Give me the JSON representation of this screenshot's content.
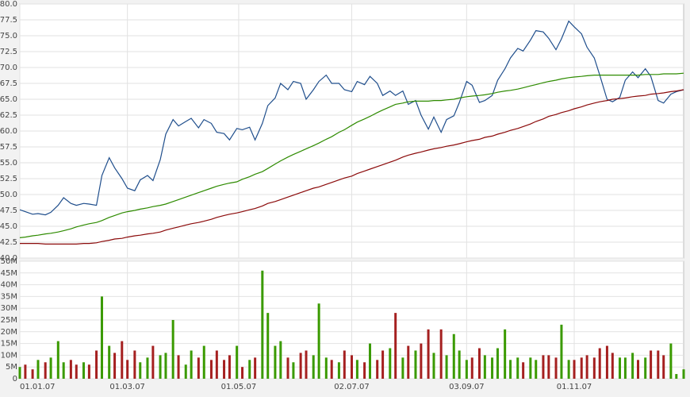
{
  "chart_data": [
    {
      "type": "line",
      "x": [
        "01.01.07",
        "04.01.07",
        "08.01.07",
        "11.01.07",
        "15.01.07",
        "18.01.07",
        "22.01.07",
        "25.01.07",
        "29.01.07",
        "01.02.07",
        "05.02.07",
        "08.02.07",
        "12.02.07",
        "15.02.07",
        "19.02.07",
        "22.02.07",
        "26.02.07",
        "01.03.07",
        "05.03.07",
        "08.03.07",
        "12.03.07",
        "15.03.07",
        "19.03.07",
        "22.03.07",
        "26.03.07",
        "29.03.07",
        "02.04.07",
        "05.04.07",
        "09.04.07",
        "12.04.07",
        "16.04.07",
        "19.04.07",
        "23.04.07",
        "26.04.07",
        "30.04.07",
        "03.05.07",
        "07.05.07",
        "10.05.07",
        "14.05.07",
        "17.05.07",
        "21.05.07",
        "24.05.07",
        "28.05.07",
        "31.05.07",
        "04.06.07",
        "07.06.07",
        "11.06.07",
        "14.06.07",
        "18.06.07",
        "21.06.07",
        "25.06.07",
        "28.06.07",
        "02.07.07",
        "05.07.07",
        "09.07.07",
        "12.07.07",
        "16.07.07",
        "19.07.07",
        "23.07.07",
        "26.07.07",
        "30.07.07",
        "02.08.07",
        "06.08.07",
        "09.08.07",
        "13.08.07",
        "16.08.07",
        "20.08.07",
        "23.08.07",
        "27.08.07",
        "30.08.07",
        "03.09.07",
        "06.09.07",
        "10.09.07",
        "13.09.07",
        "17.09.07",
        "20.09.07",
        "24.09.07",
        "27.09.07",
        "01.10.07",
        "04.10.07",
        "08.10.07",
        "11.10.07",
        "15.10.07",
        "18.10.07",
        "22.10.07",
        "25.10.07",
        "29.10.07",
        "01.11.07",
        "05.11.07",
        "08.11.07",
        "12.11.07",
        "15.11.07",
        "19.11.07",
        "22.11.07",
        "26.11.07",
        "29.11.07",
        "03.12.07",
        "06.12.07",
        "10.12.07",
        "13.12.07",
        "17.12.07",
        "20.12.07",
        "24.12.07",
        "27.12.07",
        "31.12.07"
      ],
      "xlim": [
        "01.01.07",
        "31.12.07"
      ],
      "ylim": [
        40,
        80
      ],
      "yticks": [
        {
          "value": 40,
          "label": "40.0"
        },
        42.5,
        {
          "value": 45,
          "label": "45.0"
        },
        47.5,
        {
          "value": 50,
          "label": "50.0"
        },
        52.5,
        {
          "value": 55,
          "label": "55.0"
        },
        57.5,
        {
          "value": 60,
          "label": "60.0"
        },
        62.5,
        {
          "value": 65,
          "label": "65.0"
        },
        67.5,
        {
          "value": 70,
          "label": "70.0"
        },
        72.5,
        {
          "value": 75,
          "label": "75.0"
        },
        77.5,
        {
          "value": 80,
          "label": "80.0"
        }
      ],
      "grid": true,
      "series": [
        {
          "color": "#1f4e8c",
          "values": [
            47.6,
            47.3,
            46.9,
            47.0,
            46.8,
            47.2,
            48.3,
            49.5,
            48.6,
            48.3,
            48.6,
            48.5,
            48.3,
            53.0,
            55.8,
            54.2,
            52.5,
            51.0,
            50.6,
            52.3,
            53.0,
            52.2,
            55.5,
            59.5,
            61.8,
            60.8,
            61.5,
            62.0,
            60.5,
            61.8,
            61.2,
            59.8,
            59.6,
            58.6,
            60.4,
            60.2,
            60.6,
            58.6,
            61.2,
            64.0,
            65.2,
            67.5,
            66.5,
            67.8,
            67.5,
            65.0,
            66.5,
            67.8,
            68.8,
            67.5,
            67.5,
            66.5,
            66.2,
            67.8,
            67.3,
            68.6,
            67.5,
            65.6,
            66.3,
            65.6,
            66.3,
            64.2,
            64.8,
            62.5,
            60.3,
            62.2,
            59.8,
            61.8,
            62.4,
            64.5,
            67.8,
            67.2,
            64.5,
            64.8,
            65.6,
            68.0,
            69.8,
            71.5,
            73.0,
            72.6,
            74.3,
            75.8,
            75.6,
            74.6,
            72.8,
            74.5,
            77.3,
            76.4,
            75.3,
            73.2,
            71.5,
            68.8,
            65.0,
            64.6,
            65.3,
            68.0,
            69.3,
            68.4,
            69.8,
            68.6,
            64.8,
            64.4,
            65.8,
            66.2,
            66.5
          ]
        },
        {
          "color": "#2e8b00",
          "values": [
            43.2,
            43.3,
            43.5,
            43.6,
            43.8,
            43.9,
            44.1,
            44.3,
            44.6,
            44.9,
            45.2,
            45.4,
            45.6,
            45.9,
            46.4,
            46.7,
            47.1,
            47.3,
            47.5,
            47.7,
            47.9,
            48.1,
            48.3,
            48.5,
            48.9,
            49.2,
            49.6,
            49.9,
            50.3,
            50.6,
            51.0,
            51.3,
            51.6,
            51.8,
            52.0,
            52.4,
            52.8,
            53.2,
            53.6,
            54.1,
            54.8,
            55.3,
            55.9,
            56.3,
            56.8,
            57.2,
            57.7,
            58.1,
            58.7,
            59.1,
            59.8,
            60.2,
            60.9,
            61.4,
            61.9,
            62.3,
            62.9,
            63.3,
            63.8,
            64.2,
            64.4,
            64.6,
            64.7,
            64.7,
            64.7,
            64.8,
            64.8,
            64.9,
            65.0,
            65.2,
            65.4,
            65.5,
            65.6,
            65.7,
            65.9,
            66.1,
            66.3,
            66.4,
            66.6,
            66.8,
            67.1,
            67.3,
            67.6,
            67.8,
            68.0,
            68.2,
            68.4,
            68.5,
            68.6,
            68.7,
            68.8,
            68.8,
            68.8,
            68.8,
            68.8,
            68.8,
            68.8,
            68.8,
            68.9,
            68.9,
            68.9,
            69.0,
            69.0,
            69.0,
            69.1
          ]
        },
        {
          "color": "#8b0a0a",
          "values": [
            42.3,
            42.3,
            42.3,
            42.3,
            42.2,
            42.2,
            42.2,
            42.2,
            42.2,
            42.2,
            42.3,
            42.3,
            42.4,
            42.6,
            42.8,
            43.0,
            43.1,
            43.3,
            43.5,
            43.6,
            43.8,
            43.9,
            44.1,
            44.4,
            44.7,
            44.9,
            45.2,
            45.4,
            45.6,
            45.8,
            46.1,
            46.4,
            46.7,
            46.9,
            47.1,
            47.3,
            47.6,
            47.8,
            48.2,
            48.6,
            48.9,
            49.2,
            49.6,
            49.9,
            50.3,
            50.6,
            51.0,
            51.2,
            51.6,
            51.9,
            52.3,
            52.6,
            52.9,
            53.3,
            53.7,
            54.0,
            54.4,
            54.7,
            55.1,
            55.4,
            55.9,
            56.2,
            56.5,
            56.7,
            57.0,
            57.2,
            57.4,
            57.6,
            57.8,
            58.0,
            58.3,
            58.5,
            58.7,
            59.0,
            59.2,
            59.5,
            59.8,
            60.1,
            60.4,
            60.7,
            61.1,
            61.5,
            61.9,
            62.3,
            62.6,
            62.9,
            63.2,
            63.5,
            63.8,
            64.1,
            64.4,
            64.6,
            64.8,
            65.0,
            65.1,
            65.2,
            65.4,
            65.5,
            65.6,
            65.8,
            65.9,
            66.0,
            66.2,
            66.3,
            66.5
          ]
        }
      ]
    },
    {
      "type": "bar",
      "x": [
        "01.01.07",
        "04.01.07",
        "08.01.07",
        "11.01.07",
        "15.01.07",
        "18.01.07",
        "22.01.07",
        "25.01.07",
        "29.01.07",
        "01.02.07",
        "05.02.07",
        "08.02.07",
        "12.02.07",
        "15.02.07",
        "19.02.07",
        "22.02.07",
        "26.02.07",
        "01.03.07",
        "05.03.07",
        "08.03.07",
        "12.03.07",
        "15.03.07",
        "19.03.07",
        "22.03.07",
        "26.03.07",
        "29.03.07",
        "02.04.07",
        "05.04.07",
        "09.04.07",
        "12.04.07",
        "16.04.07",
        "19.04.07",
        "23.04.07",
        "26.04.07",
        "30.04.07",
        "03.05.07",
        "07.05.07",
        "10.05.07",
        "14.05.07",
        "17.05.07",
        "21.05.07",
        "24.05.07",
        "28.05.07",
        "31.05.07",
        "04.06.07",
        "07.06.07",
        "11.06.07",
        "14.06.07",
        "18.06.07",
        "21.06.07",
        "25.06.07",
        "28.06.07",
        "02.07.07",
        "05.07.07",
        "09.07.07",
        "12.07.07",
        "16.07.07",
        "19.07.07",
        "23.07.07",
        "26.07.07",
        "30.07.07",
        "02.08.07",
        "06.08.07",
        "09.08.07",
        "13.08.07",
        "16.08.07",
        "20.08.07",
        "23.08.07",
        "27.08.07",
        "30.08.07",
        "03.09.07",
        "06.09.07",
        "10.09.07",
        "13.09.07",
        "17.09.07",
        "20.09.07",
        "24.09.07",
        "27.09.07",
        "01.10.07",
        "04.10.07",
        "08.10.07",
        "11.10.07",
        "15.10.07",
        "18.10.07",
        "22.10.07",
        "25.10.07",
        "29.10.07",
        "01.11.07",
        "05.11.07",
        "08.11.07",
        "12.11.07",
        "15.11.07",
        "19.11.07",
        "22.11.07",
        "26.11.07",
        "29.11.07",
        "03.12.07",
        "06.12.07",
        "10.12.07",
        "13.12.07",
        "17.12.07",
        "20.12.07",
        "24.12.07",
        "27.12.07",
        "31.12.07"
      ],
      "xlim": [
        "01.01.07",
        "31.12.07"
      ],
      "xticks": [
        "01.01.07",
        "01.03.07",
        "01.05.07",
        "02.07.07",
        "03.09.07",
        "01.11.07"
      ],
      "ylim": [
        0,
        50000000
      ],
      "yticks": [
        0,
        {
          "value": 5000000,
          "label": "5M"
        },
        {
          "value": 10000000,
          "label": "10M"
        },
        {
          "value": 15000000,
          "label": "15M"
        },
        {
          "value": 20000000,
          "label": "20M"
        },
        {
          "value": 25000000,
          "label": "25M"
        },
        {
          "value": 30000000,
          "label": "30M"
        },
        {
          "value": 35000000,
          "label": "35M"
        },
        {
          "value": 40000000,
          "label": "40M"
        },
        {
          "value": 45000000,
          "label": "45M"
        },
        {
          "value": 50000000,
          "label": "50M"
        }
      ],
      "grid": true,
      "up_color": "#3a9a00",
      "down_color": "#a52020",
      "values": [
        5000000,
        6000000,
        4000000,
        8000000,
        7000000,
        9000000,
        16000000,
        7000000,
        8000000,
        6000000,
        7000000,
        6000000,
        12000000,
        35000000,
        14000000,
        11000000,
        16000000,
        8000000,
        12000000,
        7000000,
        9000000,
        14000000,
        10000000,
        11000000,
        25000000,
        10000000,
        6000000,
        12000000,
        9000000,
        14000000,
        8000000,
        12000000,
        8000000,
        10000000,
        14000000,
        5000000,
        8000000,
        9000000,
        46000000,
        28000000,
        14000000,
        16000000,
        9000000,
        7000000,
        11000000,
        12000000,
        10000000,
        32000000,
        9000000,
        8000000,
        7000000,
        12000000,
        10000000,
        8000000,
        7000000,
        15000000,
        8000000,
        12000000,
        13000000,
        28000000,
        9000000,
        14000000,
        12000000,
        15000000,
        21000000,
        11000000,
        21000000,
        10000000,
        19000000,
        12000000,
        8000000,
        9000000,
        13000000,
        10000000,
        9000000,
        13000000,
        21000000,
        8000000,
        9000000,
        7000000,
        9000000,
        8000000,
        10000000,
        10000000,
        9000000,
        23000000,
        8000000,
        8000000,
        9000000,
        10000000,
        9000000,
        13000000,
        14000000,
        11000000,
        9000000,
        9000000,
        11000000,
        8000000,
        9000000,
        12000000,
        12000000,
        10000000,
        15000000,
        2000000,
        4000000
      ]
    }
  ]
}
